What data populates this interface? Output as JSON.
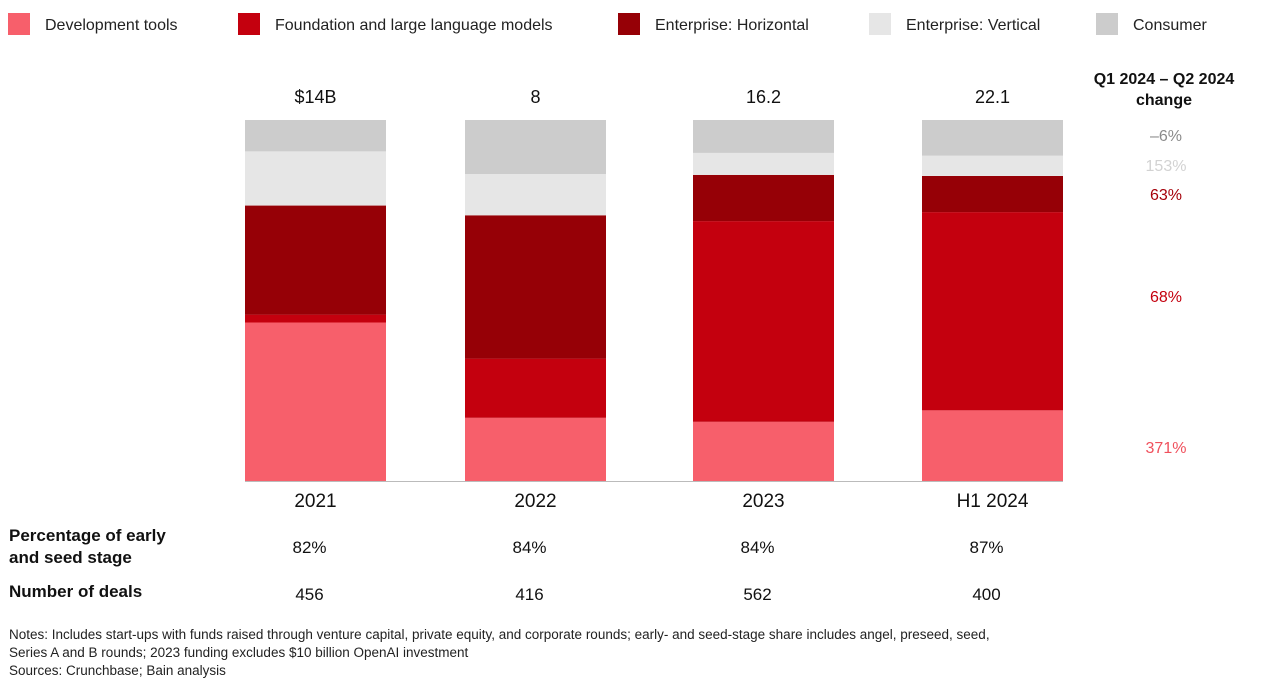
{
  "chart_data": {
    "type": "bar",
    "stacked": true,
    "categories": [
      "2021",
      "2022",
      "2023",
      "H1 2024"
    ],
    "totals_labels": [
      "$14B",
      "8",
      "16.2",
      "22.1"
    ],
    "totals": [
      14,
      8,
      16.2,
      22.1
    ],
    "series": [
      {
        "name": "Development tools",
        "color": "#f75f6b",
        "shares": [
          0.439,
          0.175,
          0.164,
          0.196
        ]
      },
      {
        "name": "Foundation and large language models",
        "color": "#c4000e",
        "shares": [
          0.022,
          0.164,
          0.556,
          0.549
        ]
      },
      {
        "name": "Enterprise: Horizontal",
        "color": "#960006",
        "shares": [
          0.302,
          0.397,
          0.128,
          0.1
        ]
      },
      {
        "name": "Enterprise: Vertical",
        "color": "#e6e6e6",
        "shares": [
          0.15,
          0.114,
          0.061,
          0.056
        ]
      },
      {
        "name": "Consumer",
        "color": "#cccccc",
        "shares": [
          0.087,
          0.15,
          0.091,
          0.099
        ]
      }
    ],
    "change_header": [
      "Q1 2024 – Q2 2024",
      "change"
    ],
    "changes": [
      {
        "series": "Consumer",
        "value": "–6%",
        "color": "#8a8a8a"
      },
      {
        "series": "Enterprise: Vertical",
        "value": "153%",
        "color": "#d2d2d2"
      },
      {
        "series": "Enterprise: Horizontal",
        "value": "63%",
        "color": "#a5000a"
      },
      {
        "series": "Foundation and large language models",
        "value": "68%",
        "color": "#c4000e"
      },
      {
        "series": "Development tools",
        "value": "371%",
        "color": "#f0505c"
      }
    ],
    "legend_position": "top",
    "grid": false
  },
  "table": {
    "rows": [
      {
        "label_lines": [
          "Percentage of early",
          "and seed stage"
        ],
        "values": [
          "82%",
          "84%",
          "84%",
          "87%"
        ]
      },
      {
        "label_lines": [
          "Number of deals"
        ],
        "values": [
          "456",
          "416",
          "562",
          "400"
        ]
      }
    ]
  },
  "notes": {
    "lines": [
      "Notes: Includes start-ups with funds raised through venture capital, private equity, and corporate rounds; early- and seed-stage share includes angel, preseed, seed,",
      "Series A and B rounds; 2023 funding excludes $10 billion OpenAI investment",
      "Sources: Crunchbase; Bain analysis"
    ]
  }
}
